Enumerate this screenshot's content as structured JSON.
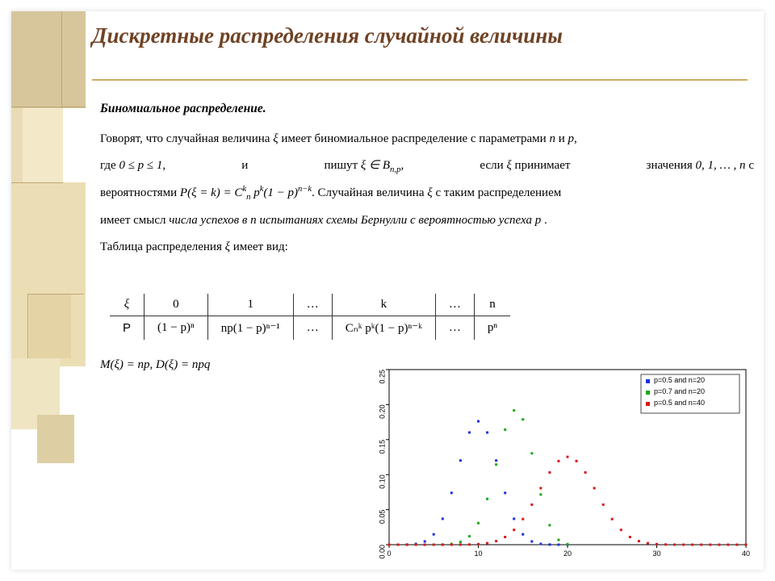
{
  "title": "Дискретные распределения случайной величины",
  "section_heading": "Биномиальное распределение.",
  "para1_a": "Говорят, что случайная величина ",
  "para1_b": " имеет биномиальное распределение с параметрами ",
  "para1_c": " и ",
  "para1_end": ",",
  "para2_a": "где ",
  "para2_bound": "0 ≤ p ≤ 1",
  "para2_b": ",",
  "para2_c": "и",
  "para2_d": "пишут ",
  "para2_bexpr": "ξ ∈ B",
  "para2_sub": "n,p",
  "para2_e": ",",
  "para2_f": "если ",
  "para2_g": " принимает",
  "para2_h": "значения ",
  "para2_vals": "0, 1, … , n",
  "para2_i": " с",
  "para3_a": "вероятностями ",
  "para3_pmf_pre": "P(ξ = k) = C",
  "para3_pmf_supk": "k",
  "para3_pmf_subn": "n",
  "para3_pmf_mid": " p",
  "para3_pmf_mid2": "(1 − p)",
  "para3_pmf_exp2": "n−k",
  "para3_b": ".  Случайная величина ",
  "para3_c": " с таким распределением",
  "para4": "имеет смысл числа успехов в n испытаниях схемы Бернулли с вероятностью успеха p .",
  "para5_a": "Таблица распределения ",
  "para5_b": " имеет вид:",
  "xi": "ξ",
  "n_sym": "n",
  "p_sym": "p",
  "table": {
    "head": [
      "ξ",
      "0",
      "1",
      "…",
      "k",
      "…",
      "n"
    ],
    "prow_label": "P",
    "cells": [
      "(1 − p)ⁿ",
      "np(1 − p)ⁿ⁻¹",
      "…",
      "Cₙᵏ pᵏ(1 − p)ⁿ⁻ᵏ",
      "…",
      "pⁿ"
    ]
  },
  "moments": "M(ξ) = np,  D(ξ) = npq",
  "chart": {
    "type": "scatter",
    "xlim": [
      0,
      40
    ],
    "ylim": [
      0,
      0.25
    ],
    "xtick_step": 10,
    "ytick_step": 0.05,
    "xticks": [
      0,
      10,
      20,
      30,
      40
    ],
    "yticks": [
      0,
      0.05,
      0.1,
      0.15,
      0.2,
      0.25
    ],
    "ytick_labels": [
      "0.00",
      "0.05",
      "0.10",
      "0.15",
      "0.20",
      "0.25"
    ],
    "background_color": "#ffffff",
    "axis_color": "#000000",
    "marker_size": 3,
    "legend_pos": "top-right",
    "legend_border": "#000000",
    "series": [
      {
        "label": "p=0.5 and n=20",
        "color": "#1a2fe0",
        "n": 20,
        "p": 0.5
      },
      {
        "label": "p=0.7 and n=20",
        "color": "#18a818",
        "n": 20,
        "p": 0.7
      },
      {
        "label": "p=0.5 and n=40",
        "color": "#d81818",
        "n": 40,
        "p": 0.5
      }
    ]
  }
}
